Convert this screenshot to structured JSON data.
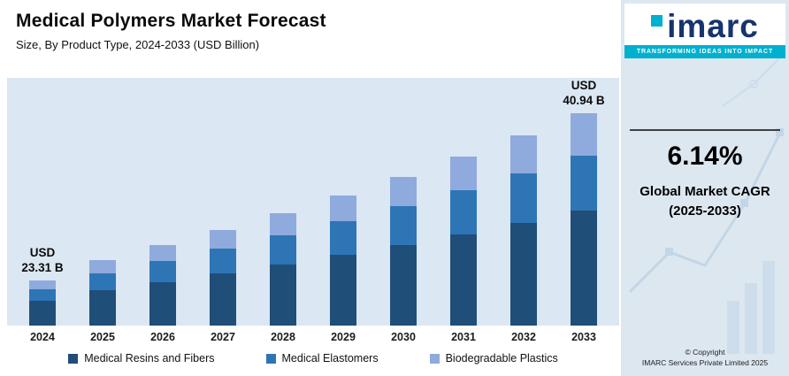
{
  "header": {
    "title": "Medical Polymers Market Forecast",
    "subtitle": "Size, By Product Type, 2024-2033 (USD Billion)"
  },
  "chart_data": {
    "type": "bar",
    "stacked": true,
    "unit": "USD Billion",
    "categories": [
      "2024",
      "2025",
      "2026",
      "2027",
      "2028",
      "2029",
      "2030",
      "2031",
      "2032",
      "2033"
    ],
    "series": [
      {
        "name": "Medical Resins and Fibers",
        "color": "#1f4e79",
        "values": [
          12.59,
          13.73,
          14.57,
          15.46,
          16.41,
          17.42,
          18.49,
          19.62,
          20.83,
          22.11
        ]
      },
      {
        "name": "Medical Elastomers",
        "color": "#2e75b6",
        "values": [
          6.06,
          6.61,
          7.01,
          7.44,
          7.9,
          8.39,
          8.9,
          9.45,
          10.03,
          10.64
        ]
      },
      {
        "name": "Biodegradable Plastics",
        "color": "#8faadc",
        "values": [
          4.66,
          5.08,
          5.4,
          5.73,
          6.08,
          6.45,
          6.85,
          7.27,
          7.71,
          8.19
        ]
      }
    ],
    "totals": [
      23.31,
      25.42,
      26.98,
      28.63,
      30.39,
      32.26,
      34.24,
      36.34,
      38.57,
      40.94
    ],
    "annotations": [
      {
        "category": "2024",
        "line1": "USD",
        "line2": "23.31 B"
      },
      {
        "category": "2033",
        "line1": "USD",
        "line2": "40.94 B"
      }
    ],
    "legend_position": "bottom",
    "grid": false,
    "y_axis_visible": false
  },
  "sidebar": {
    "logo_text": "imarc",
    "tagline": "TRANSFORMING IDEAS INTO IMPACT",
    "cagr_value": "6.14%",
    "cagr_label_line1": "Global Market CAGR",
    "cagr_label_line2": "(2025-2033)",
    "copyright_line1": "© Copyright",
    "copyright_line2": "IMARC Services Private Limited 2025"
  }
}
